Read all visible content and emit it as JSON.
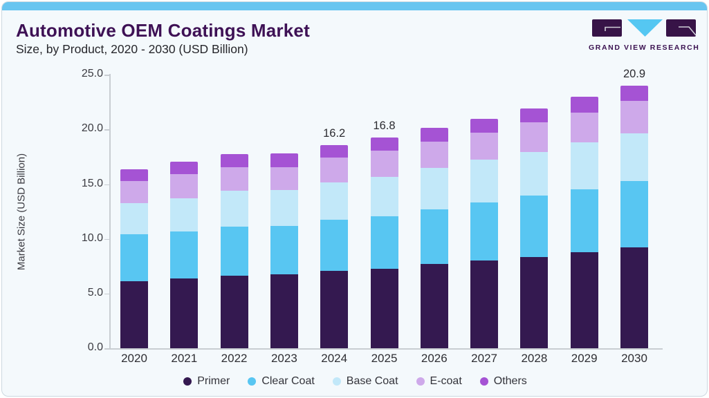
{
  "header": {
    "title": "Automotive OEM Coatings Market",
    "subtitle": "Size, by Product, 2020 - 2030 (USD Billion)"
  },
  "logo": {
    "text": "GRAND VIEW RESEARCH",
    "block_color": "#371347",
    "triangle_color": "#55c7f2"
  },
  "chart_data": {
    "type": "bar",
    "stacked": true,
    "title": "Automotive OEM Coatings Market Size, by Product, 2020 - 2030 (USD Billion)",
    "ylabel": "Market Size (USD Billion)",
    "ylim": [
      0,
      25
    ],
    "yticks": [
      "0.0",
      "5.0",
      "10.0",
      "15.0",
      "20.0",
      "25.0"
    ],
    "grid": false,
    "legend_position": "bottom",
    "categories": [
      "2020",
      "2021",
      "2022",
      "2023",
      "2024",
      "2025",
      "2026",
      "2027",
      "2028",
      "2029",
      "2030"
    ],
    "series": [
      {
        "name": "Primer",
        "color": "#341950",
        "values": [
          5.36,
          5.54,
          5.78,
          5.87,
          6.15,
          6.34,
          6.7,
          6.97,
          7.29,
          7.65,
          8.02
        ]
      },
      {
        "name": "Clear Coat",
        "color": "#58c6f2",
        "values": [
          3.72,
          3.78,
          3.89,
          3.85,
          4.09,
          4.18,
          4.35,
          4.62,
          4.86,
          5.01,
          5.28
        ]
      },
      {
        "name": "Base Coat",
        "color": "#c2e8f9",
        "values": [
          2.48,
          2.64,
          2.86,
          2.88,
          2.97,
          3.12,
          3.3,
          3.45,
          3.48,
          3.73,
          3.84
        ]
      },
      {
        "name": "E-coat",
        "color": "#cea9ea",
        "values": [
          1.74,
          1.89,
          1.91,
          1.84,
          1.98,
          2.11,
          2.11,
          2.15,
          2.39,
          2.37,
          2.58
        ]
      },
      {
        "name": "Others",
        "color": "#a553d4",
        "values": [
          0.97,
          1.01,
          1.02,
          1.06,
          1.01,
          1.05,
          1.12,
          1.1,
          1.1,
          1.25,
          1.18
        ]
      }
    ],
    "totals": [
      14.27,
      14.86,
      15.46,
      15.5,
      16.2,
      16.8,
      17.58,
      18.29,
      19.12,
      20.01,
      20.9
    ],
    "bar_value_labels": [
      "",
      "",
      "",
      "",
      "16.2",
      "16.8",
      "",
      "",
      "",
      "",
      "20.9"
    ]
  }
}
